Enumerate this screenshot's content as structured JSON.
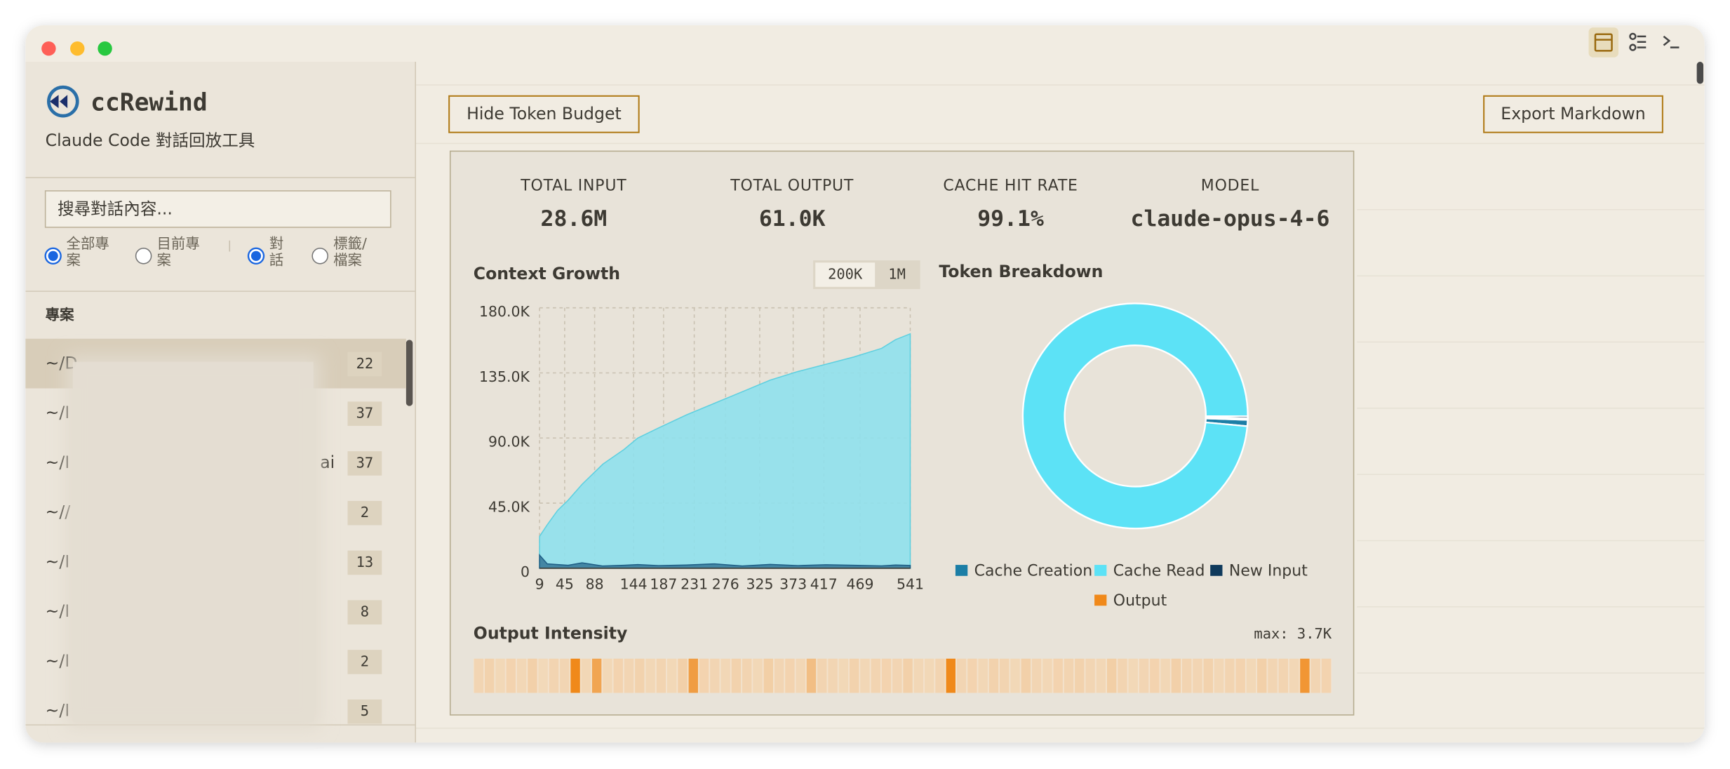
{
  "window": {
    "app_name": "ccRewind",
    "app_subtitle": "Claude Code 對話回放工具"
  },
  "sidebar": {
    "search_placeholder": "搜尋對話內容...",
    "scope_options": [
      {
        "label": "全部專案",
        "selected": true
      },
      {
        "label": "目前專案",
        "selected": false
      }
    ],
    "mode_options": [
      {
        "label": "對話",
        "selected": true
      },
      {
        "label": "標籤/檔案",
        "selected": false
      }
    ],
    "section_title": "專案",
    "projects": [
      {
        "path": "~/D",
        "count": 22,
        "selected": true
      },
      {
        "path": "~/I",
        "count": 37
      },
      {
        "path": "~/I",
        "suffix": "ai",
        "count": 37
      },
      {
        "path": "~//",
        "count": 2
      },
      {
        "path": "~/I",
        "count": 13
      },
      {
        "path": "~/I",
        "count": 8
      },
      {
        "path": "~/I",
        "count": 2
      },
      {
        "path": "~/I",
        "count": 5
      }
    ]
  },
  "toolbar": {
    "left_button": "Hide Token Budget",
    "right_button": "Export Markdown"
  },
  "stats": [
    {
      "label": "TOTAL INPUT",
      "value": "28.6M"
    },
    {
      "label": "TOTAL OUTPUT",
      "value": "61.0K"
    },
    {
      "label": "CACHE HIT RATE",
      "value": "99.1%"
    },
    {
      "label": "MODEL",
      "value": "claude-opus-4-6"
    }
  ],
  "context_growth": {
    "title": "Context Growth",
    "toggle_options": [
      "200K",
      "1M"
    ],
    "toggle_active_index": 0,
    "chart_data": {
      "type": "area",
      "x": [
        9,
        20,
        35,
        50,
        70,
        100,
        130,
        150,
        180,
        220,
        260,
        300,
        340,
        380,
        420,
        460,
        500,
        520,
        541
      ],
      "series": [
        {
          "name": "Context",
          "color": "#8fe0ec",
          "values": [
            22000,
            30000,
            40000,
            47000,
            58000,
            72000,
            82000,
            90000,
            97000,
            106000,
            114000,
            122000,
            130000,
            136000,
            141000,
            146000,
            152000,
            158000,
            162000
          ]
        },
        {
          "name": "Output",
          "color": "#1f5f86",
          "values": [
            9000,
            3000,
            2500,
            2000,
            3700,
            1500,
            2000,
            2500,
            1800,
            2200,
            3000,
            1500,
            2600,
            1800,
            2400,
            2000,
            1600,
            2200,
            1900
          ]
        }
      ],
      "xlim": [
        9,
        541
      ],
      "xticks": [
        9,
        45,
        88,
        144,
        187,
        231,
        276,
        325,
        373,
        417,
        469,
        541
      ],
      "ylim": [
        0,
        180000
      ],
      "yticks": [
        0,
        {
          "value": 45000,
          "label": "45.0K"
        },
        {
          "value": 90000,
          "label": "90.0K"
        },
        {
          "value": 135000,
          "label": "135.0K"
        },
        {
          "value": 180000,
          "label": "180.0K"
        }
      ],
      "grid": true
    }
  },
  "token_breakdown": {
    "title": "Token Breakdown",
    "chart_data": {
      "type": "donut",
      "categories": [
        "Cache Creation",
        "Cache Read",
        "New Input",
        "Output"
      ],
      "values": [
        0.9,
        98.6,
        0.3,
        0.2
      ],
      "colors": [
        "#1b7ea6",
        "#5ce2f6",
        "#0f3a5c",
        "#f0891a"
      ]
    }
  },
  "output_intensity": {
    "title": "Output Intensity",
    "max_label": "max: 3.7K",
    "color": "#f0891a",
    "values": [
      900,
      1200,
      700,
      1100,
      800,
      1300,
      600,
      1000,
      900,
      3700,
      800,
      3000,
      700,
      1100,
      900,
      1200,
      800,
      1000,
      700,
      1300,
      3200,
      1100,
      900,
      800,
      1200,
      1000,
      700,
      1400,
      900,
      1100,
      800,
      2200,
      1000,
      900,
      700,
      1200,
      800,
      1000,
      1100,
      900,
      1300,
      800,
      700,
      1000,
      3700,
      900,
      1100,
      800,
      1200,
      1000,
      700,
      1300,
      900,
      800,
      1100,
      1000,
      1200,
      900,
      800,
      1400,
      1000,
      700,
      900,
      1100,
      800,
      1300,
      1000,
      900,
      1200,
      800,
      1000,
      1100,
      700,
      1300,
      900,
      1000,
      800,
      3400,
      900,
      1100
    ]
  }
}
